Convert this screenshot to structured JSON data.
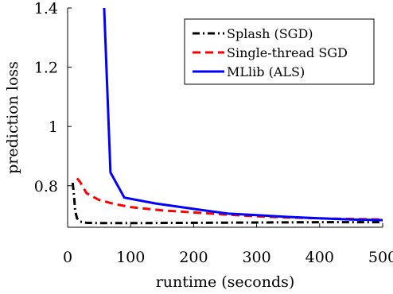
{
  "chart_data": {
    "type": "line",
    "xlabel": "runtime (seconds)",
    "ylabel": "prediction loss",
    "xlim": [
      0,
      500
    ],
    "ylim": [
      0.66,
      1.4
    ],
    "xticks": [
      0,
      100,
      200,
      300,
      400,
      500
    ],
    "yticks": [
      0.8,
      1,
      1.2,
      1.4
    ],
    "xtick_labels": [
      "0",
      "100",
      "200",
      "300",
      "400",
      "500"
    ],
    "ytick_labels": [
      "0.8",
      "1",
      "1.2",
      "1.4"
    ],
    "grid": false,
    "legend_position": "top-right",
    "series": [
      {
        "name": "Splash (SGD)",
        "color": "#000000",
        "style": "dash-dot",
        "points": [
          [
            8,
            0.81
          ],
          [
            10,
            0.77
          ],
          [
            12,
            0.715
          ],
          [
            15,
            0.69
          ],
          [
            20,
            0.679
          ],
          [
            30,
            0.675
          ],
          [
            50,
            0.674
          ],
          [
            100,
            0.674
          ],
          [
            200,
            0.675
          ],
          [
            300,
            0.676
          ],
          [
            400,
            0.677
          ],
          [
            500,
            0.677
          ]
        ]
      },
      {
        "name": "Single-thread SGD",
        "color": "#ff0000",
        "style": "dashed",
        "points": [
          [
            15,
            0.825
          ],
          [
            20,
            0.812
          ],
          [
            30,
            0.775
          ],
          [
            50,
            0.752
          ],
          [
            75,
            0.738
          ],
          [
            100,
            0.728
          ],
          [
            150,
            0.717
          ],
          [
            200,
            0.71
          ],
          [
            250,
            0.703
          ],
          [
            300,
            0.697
          ],
          [
            350,
            0.693
          ],
          [
            400,
            0.69
          ],
          [
            450,
            0.688
          ],
          [
            500,
            0.686
          ]
        ]
      },
      {
        "name": "MLlib (ALS)",
        "color": "#0000ff",
        "style": "solid",
        "points": [
          [
            58,
            1.4
          ],
          [
            68,
            0.845
          ],
          [
            90,
            0.76
          ],
          [
            140,
            0.74
          ],
          [
            200,
            0.722
          ],
          [
            255,
            0.706
          ],
          [
            300,
            0.701
          ],
          [
            350,
            0.695
          ],
          [
            400,
            0.69
          ],
          [
            450,
            0.686
          ],
          [
            500,
            0.684
          ]
        ]
      }
    ]
  }
}
